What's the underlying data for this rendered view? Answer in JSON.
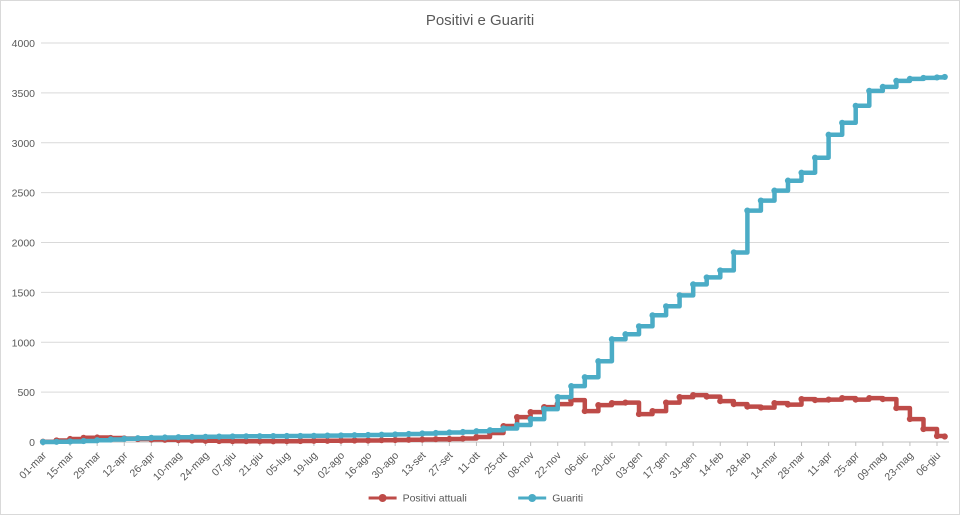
{
  "title": "Positivi e Guariti",
  "colors": {
    "positivi": "#be4b48",
    "guariti": "#4bacc6",
    "gridline": "#d9d9d9",
    "axis_line": "#bfbfbf",
    "text": "#595959",
    "background": "#ffffff",
    "frame_border": "#d9d9d9"
  },
  "chart_data": {
    "type": "line",
    "title": "Positivi e Guariti",
    "xlabel": "",
    "ylabel": "",
    "ylim": [
      0,
      4000
    ],
    "y_ticks": [
      0,
      500,
      1000,
      1500,
      2000,
      2500,
      3000,
      3500,
      4000
    ],
    "x_tick_interval_days": 14,
    "x_max_days": 468,
    "grid": "horizontal",
    "legend_position": "bottom",
    "interpolation": "step-after",
    "x_tick_labels": [
      "01-mar",
      "15-mar",
      "29-mar",
      "12-apr",
      "26-apr",
      "10-mag",
      "24-mag",
      "07-giu",
      "21-giu",
      "05-lug",
      "19-lug",
      "02-ago",
      "16-ago",
      "30-ago",
      "13-set",
      "27-set",
      "11-ott",
      "25-ott",
      "08-nov",
      "22-nov",
      "06-dic",
      "20-dic",
      "03-gen",
      "17-gen",
      "31-gen",
      "14-feb",
      "28-feb",
      "14-mar",
      "28-mar",
      "11-apr",
      "25-apr",
      "09-mag",
      "23-mag",
      "06-giu"
    ],
    "x_days": [
      0,
      7,
      14,
      21,
      28,
      35,
      42,
      49,
      56,
      63,
      70,
      77,
      84,
      91,
      98,
      105,
      112,
      119,
      126,
      133,
      140,
      147,
      154,
      161,
      168,
      175,
      182,
      189,
      196,
      203,
      210,
      217,
      224,
      231,
      238,
      245,
      252,
      259,
      266,
      273,
      280,
      287,
      294,
      301,
      308,
      315,
      322,
      329,
      336,
      343,
      350,
      357,
      364,
      371,
      378,
      385,
      392,
      399,
      406,
      413,
      420,
      427,
      434,
      441,
      448,
      455,
      462,
      466
    ],
    "series": [
      {
        "name": "Positivi attuali",
        "color": "#be4b48",
        "values": [
          3,
          15,
          30,
          42,
          45,
          40,
          35,
          30,
          25,
          22,
          18,
          15,
          12,
          10,
          8,
          8,
          7,
          7,
          8,
          10,
          12,
          12,
          14,
          15,
          15,
          18,
          20,
          22,
          25,
          28,
          30,
          35,
          50,
          90,
          160,
          250,
          300,
          350,
          380,
          420,
          310,
          370,
          390,
          395,
          280,
          310,
          395,
          450,
          470,
          455,
          410,
          380,
          355,
          345,
          390,
          375,
          430,
          420,
          425,
          440,
          425,
          440,
          430,
          340,
          230,
          130,
          60,
          55
        ]
      },
      {
        "name": "Guariti",
        "color": "#4bacc6",
        "values": [
          0,
          2,
          5,
          10,
          18,
          25,
          32,
          38,
          42,
          45,
          48,
          50,
          52,
          54,
          56,
          57,
          58,
          59,
          60,
          61,
          62,
          64,
          66,
          68,
          70,
          73,
          76,
          80,
          85,
          90,
          95,
          100,
          108,
          118,
          135,
          170,
          230,
          330,
          450,
          560,
          650,
          810,
          1030,
          1080,
          1160,
          1270,
          1360,
          1470,
          1580,
          1650,
          1720,
          1900,
          2320,
          2420,
          2520,
          2620,
          2700,
          2850,
          3080,
          3200,
          3370,
          3520,
          3560,
          3620,
          3640,
          3650,
          3655,
          3660
        ]
      }
    ]
  }
}
